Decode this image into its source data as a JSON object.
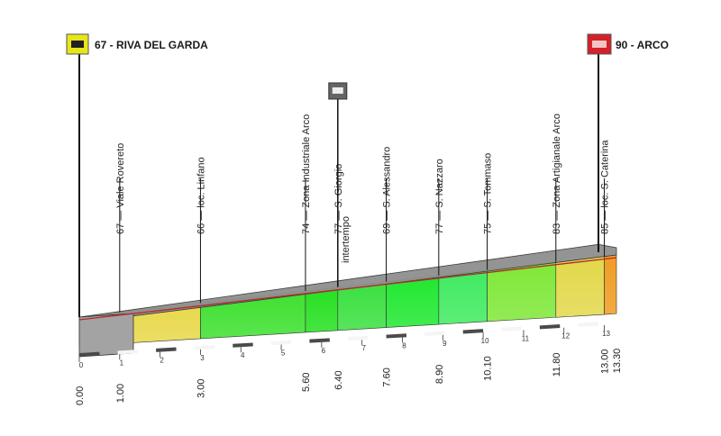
{
  "start": {
    "label": "67 - RIVA DEL GARDA",
    "km": 0.0,
    "alt": 67
  },
  "finish": {
    "label": "90 - ARCO",
    "km": 13.3,
    "alt": 90
  },
  "waypoints": [
    {
      "text": "67 — Viale Rovereto",
      "km": 1.0
    },
    {
      "text": "66 — loc. Linfano",
      "km": 3.0
    },
    {
      "text": "74 — Zona Industriale Arco",
      "km": 5.6
    },
    {
      "text": "77 — S. Giorgio",
      "km": 6.4
    },
    {
      "text": "69 — S. Alessandro",
      "km": 7.6
    },
    {
      "text": "77 — S. Nazzaro",
      "km": 8.9
    },
    {
      "text": "75 — S. Tommaso",
      "km": 10.1
    },
    {
      "text": "83 — Zona Artigianale Arco",
      "km": 11.8
    },
    {
      "text": "85 — loc. S. Caterina",
      "km": 13.0
    }
  ],
  "intermediate": {
    "label": "intertempo",
    "km": 6.4
  },
  "km_labels": [
    "0.00",
    "1.00",
    "3.00",
    "5.60",
    "6.40",
    "7.60",
    "8.90",
    "10.10",
    "11.80",
    "13.00",
    "13.30"
  ],
  "km_label_values": [
    0,
    1,
    3,
    5.6,
    6.4,
    7.6,
    8.9,
    10.1,
    11.8,
    13.0,
    13.3
  ],
  "km_ticks": [
    "0",
    "1",
    "2",
    "3",
    "4",
    "5",
    "6",
    "7",
    "8",
    "9",
    "10",
    "11",
    "12",
    "13"
  ],
  "segments": [
    {
      "from": 0,
      "to": 1,
      "color": "#f0a020"
    },
    {
      "from": 1,
      "to": 3,
      "color": "#e8d84a"
    },
    {
      "from": 3,
      "to": 5.6,
      "color": "#3ee030"
    },
    {
      "from": 5.6,
      "to": 6.4,
      "color": "#25e020"
    },
    {
      "from": 6.4,
      "to": 7.6,
      "color": "#3ae040"
    },
    {
      "from": 7.6,
      "to": 8.9,
      "color": "#20e830"
    },
    {
      "from": 8.9,
      "to": 10.1,
      "color": "#40ea60"
    },
    {
      "from": 10.1,
      "to": 11.8,
      "color": "#7fe838"
    },
    {
      "from": 11.8,
      "to": 13.0,
      "color": "#e2d84a"
    },
    {
      "from": 13.0,
      "to": 13.3,
      "color": "#f09c22"
    }
  ],
  "colors": {
    "start_flag": "#e6e61a",
    "finish_flag": "#d6202a",
    "road_line": "#b8262a"
  }
}
